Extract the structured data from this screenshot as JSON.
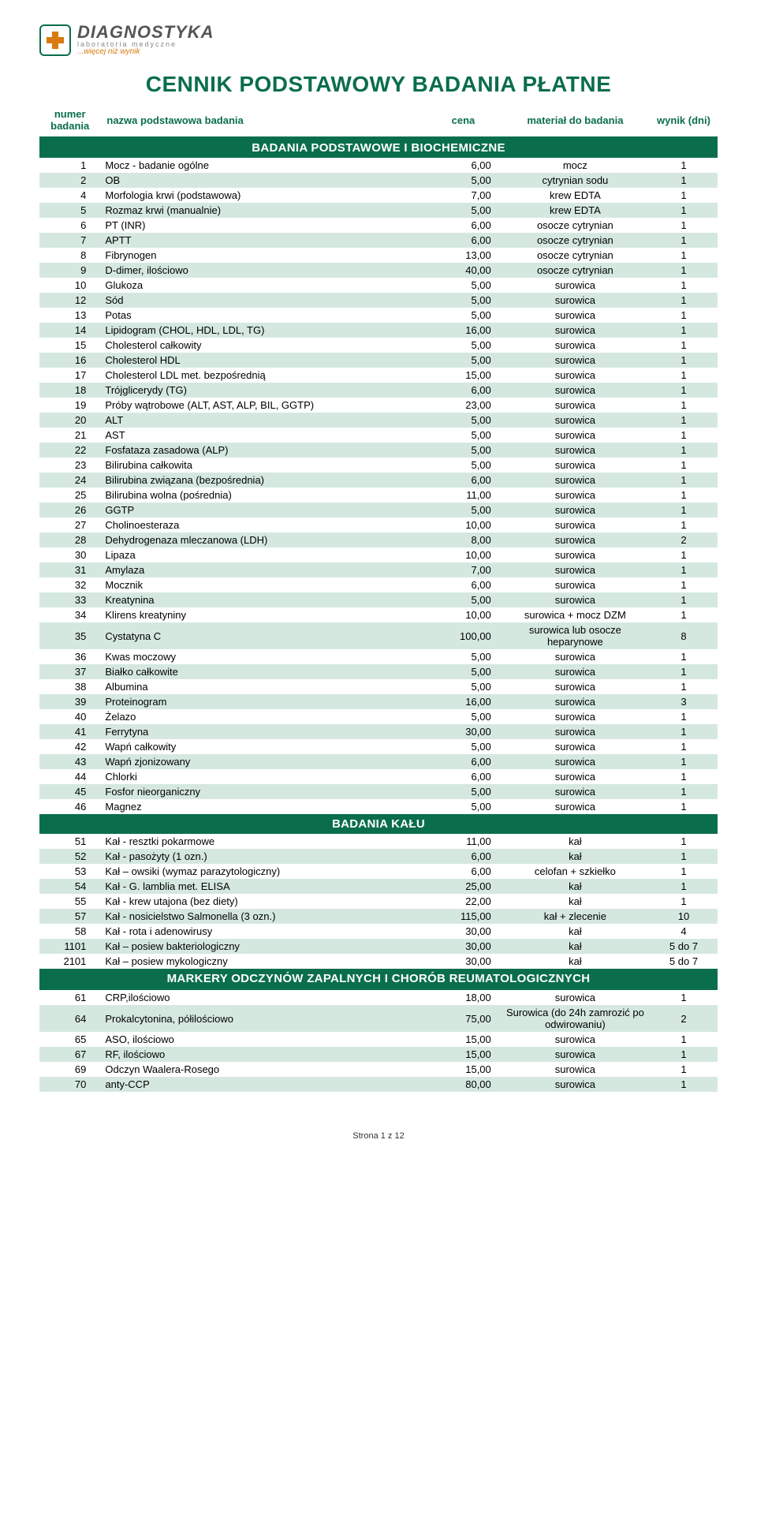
{
  "logo": {
    "main": "DIAGNOSTYKA",
    "sub": "laboratoria medyczne",
    "tag": "...więcej niż wynik"
  },
  "title": "CENNIK PODSTAWOWY BADANIA PŁATNE",
  "columns": {
    "num": "numer badania",
    "name": "nazwa podstawowa badania",
    "cena": "cena",
    "material": "materiał do badania",
    "wynik": "wynik (dni)"
  },
  "colors": {
    "brand": "#0a6e4c",
    "stripe": "#d5e8e0",
    "logo_cross": "#d97a0f"
  },
  "footer": "Strona 1 z 12",
  "sections": [
    {
      "title": "BADANIA PODSTAWOWE I BIOCHEMICZNE",
      "rows": [
        {
          "n": "1",
          "name": "Mocz - badanie ogólne",
          "c": "6,00",
          "m": "mocz",
          "w": "1"
        },
        {
          "n": "2",
          "name": "OB",
          "c": "5,00",
          "m": "cytrynian sodu",
          "w": "1"
        },
        {
          "n": "4",
          "name": "Morfologia krwi (podstawowa)",
          "c": "7,00",
          "m": "krew EDTA",
          "w": "1"
        },
        {
          "n": "5",
          "name": "Rozmaz krwi (manualnie)",
          "c": "5,00",
          "m": "krew EDTA",
          "w": "1"
        },
        {
          "n": "6",
          "name": "PT (INR)",
          "c": "6,00",
          "m": "osocze cytrynian",
          "w": "1"
        },
        {
          "n": "7",
          "name": "APTT",
          "c": "6,00",
          "m": "osocze cytrynian",
          "w": "1"
        },
        {
          "n": "8",
          "name": "Fibrynogen",
          "c": "13,00",
          "m": "osocze cytrynian",
          "w": "1"
        },
        {
          "n": "9",
          "name": "D-dimer, ilościowo",
          "c": "40,00",
          "m": "osocze cytrynian",
          "w": "1"
        },
        {
          "n": "10",
          "name": "Glukoza",
          "c": "5,00",
          "m": "surowica",
          "w": "1"
        },
        {
          "n": "12",
          "name": "Sód",
          "c": "5,00",
          "m": "surowica",
          "w": "1"
        },
        {
          "n": "13",
          "name": "Potas",
          "c": "5,00",
          "m": "surowica",
          "w": "1"
        },
        {
          "n": "14",
          "name": "Lipidogram (CHOL, HDL, LDL, TG)",
          "c": "16,00",
          "m": "surowica",
          "w": "1"
        },
        {
          "n": "15",
          "name": "Cholesterol całkowity",
          "c": "5,00",
          "m": "surowica",
          "w": "1"
        },
        {
          "n": "16",
          "name": "Cholesterol HDL",
          "c": "5,00",
          "m": "surowica",
          "w": "1"
        },
        {
          "n": "17",
          "name": "Cholesterol LDL met. bezpośrednią",
          "c": "15,00",
          "m": "surowica",
          "w": "1"
        },
        {
          "n": "18",
          "name": "Trójglicerydy (TG)",
          "c": "6,00",
          "m": "surowica",
          "w": "1"
        },
        {
          "n": "19",
          "name": "Próby wątrobowe (ALT, AST, ALP, BIL, GGTP)",
          "c": "23,00",
          "m": "surowica",
          "w": "1"
        },
        {
          "n": "20",
          "name": "ALT",
          "c": "5,00",
          "m": "surowica",
          "w": "1"
        },
        {
          "n": "21",
          "name": "AST",
          "c": "5,00",
          "m": "surowica",
          "w": "1"
        },
        {
          "n": "22",
          "name": "Fosfataza zasadowa (ALP)",
          "c": "5,00",
          "m": "surowica",
          "w": "1"
        },
        {
          "n": "23",
          "name": "Bilirubina całkowita",
          "c": "5,00",
          "m": "surowica",
          "w": "1"
        },
        {
          "n": "24",
          "name": "Bilirubina związana (bezpośrednia)",
          "c": "6,00",
          "m": "surowica",
          "w": "1"
        },
        {
          "n": "25",
          "name": "Bilirubina wolna (pośrednia)",
          "c": "11,00",
          "m": "surowica",
          "w": "1"
        },
        {
          "n": "26",
          "name": "GGTP",
          "c": "5,00",
          "m": "surowica",
          "w": "1"
        },
        {
          "n": "27",
          "name": "Cholinoesteraza",
          "c": "10,00",
          "m": "surowica",
          "w": "1"
        },
        {
          "n": "28",
          "name": "Dehydrogenaza mleczanowa (LDH)",
          "c": "8,00",
          "m": "surowica",
          "w": "2"
        },
        {
          "n": "30",
          "name": "Lipaza",
          "c": "10,00",
          "m": "surowica",
          "w": "1"
        },
        {
          "n": "31",
          "name": "Amylaza",
          "c": "7,00",
          "m": "surowica",
          "w": "1"
        },
        {
          "n": "32",
          "name": "Mocznik",
          "c": "6,00",
          "m": "surowica",
          "w": "1"
        },
        {
          "n": "33",
          "name": "Kreatynina",
          "c": "5,00",
          "m": "surowica",
          "w": "1"
        },
        {
          "n": "34",
          "name": "Klirens kreatyniny",
          "c": "10,00",
          "m": "surowica + mocz DZM",
          "w": "1"
        },
        {
          "n": "35",
          "name": "Cystatyna C",
          "c": "100,00",
          "m": "surowica lub osocze heparynowe",
          "w": "8"
        },
        {
          "n": "36",
          "name": "Kwas moczowy",
          "c": "5,00",
          "m": "surowica",
          "w": "1"
        },
        {
          "n": "37",
          "name": "Białko całkowite",
          "c": "5,00",
          "m": "surowica",
          "w": "1"
        },
        {
          "n": "38",
          "name": "Albumina",
          "c": "5,00",
          "m": "surowica",
          "w": "1"
        },
        {
          "n": "39",
          "name": "Proteinogram",
          "c": "16,00",
          "m": "surowica",
          "w": "3"
        },
        {
          "n": "40",
          "name": "Żelazo",
          "c": "5,00",
          "m": "surowica",
          "w": "1"
        },
        {
          "n": "41",
          "name": "Ferrytyna",
          "c": "30,00",
          "m": "surowica",
          "w": "1"
        },
        {
          "n": "42",
          "name": "Wapń całkowity",
          "c": "5,00",
          "m": "surowica",
          "w": "1"
        },
        {
          "n": "43",
          "name": "Wapń zjonizowany",
          "c": "6,00",
          "m": "surowica",
          "w": "1"
        },
        {
          "n": "44",
          "name": "Chlorki",
          "c": "6,00",
          "m": "surowica",
          "w": "1"
        },
        {
          "n": "45",
          "name": "Fosfor nieorganiczny",
          "c": "5,00",
          "m": "surowica",
          "w": "1"
        },
        {
          "n": "46",
          "name": "Magnez",
          "c": "5,00",
          "m": "surowica",
          "w": "1"
        }
      ]
    },
    {
      "title": "BADANIA KAŁU",
      "rows": [
        {
          "n": "51",
          "name": "Kał - resztki pokarmowe",
          "c": "11,00",
          "m": "kał",
          "w": "1"
        },
        {
          "n": "52",
          "name": "Kał - pasożyty (1 ozn.)",
          "c": "6,00",
          "m": "kał",
          "w": "1"
        },
        {
          "n": "53",
          "name": "Kał – owsiki (wymaz parazytologiczny)",
          "c": "6,00",
          "m": "celofan + szkiełko",
          "w": "1"
        },
        {
          "n": "54",
          "name": "Kał - G. lamblia met. ELISA",
          "c": "25,00",
          "m": "kał",
          "w": "1"
        },
        {
          "n": "55",
          "name": "Kał - krew utajona (bez diety)",
          "c": "22,00",
          "m": "kał",
          "w": "1"
        },
        {
          "n": "57",
          "name": "Kał - nosicielstwo Salmonella (3 ozn.)",
          "c": "115,00",
          "m": "kał + zlecenie",
          "w": "10"
        },
        {
          "n": "58",
          "name": "Kał - rota i adenowirusy",
          "c": "30,00",
          "m": "kał",
          "w": "4"
        },
        {
          "n": "1101",
          "name": "Kał – posiew bakteriologiczny",
          "c": "30,00",
          "m": "kał",
          "w": "5 do 7"
        },
        {
          "n": "2101",
          "name": "Kał – posiew mykologiczny",
          "c": "30,00",
          "m": "kał",
          "w": "5 do 7"
        }
      ]
    },
    {
      "title": "MARKERY ODCZYNÓW ZAPALNYCH I CHORÓB REUMATOLOGICZNYCH",
      "rows": [
        {
          "n": "61",
          "name": "CRP,ilościowo",
          "c": "18,00",
          "m": "surowica",
          "w": "1"
        },
        {
          "n": "64",
          "name": "Prokalcytonina, półilościowo",
          "c": "75,00",
          "m": "Surowica (do 24h zamrozić po odwirowaniu)",
          "w": "2"
        },
        {
          "n": "65",
          "name": "ASO, ilościowo",
          "c": "15,00",
          "m": "surowica",
          "w": "1"
        },
        {
          "n": "67",
          "name": "RF, ilościowo",
          "c": "15,00",
          "m": "surowica",
          "w": "1"
        },
        {
          "n": "69",
          "name": "Odczyn Waalera-Rosego",
          "c": "15,00",
          "m": "surowica",
          "w": "1"
        },
        {
          "n": "70",
          "name": "anty-CCP",
          "c": "80,00",
          "m": "surowica",
          "w": "1"
        }
      ]
    }
  ]
}
